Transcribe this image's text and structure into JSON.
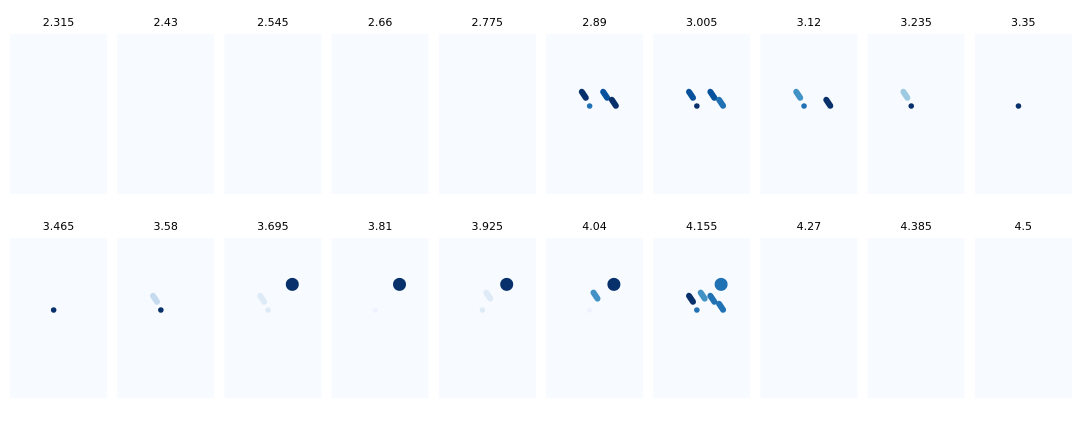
{
  "figure": {
    "background": "#ffffff",
    "panel_background": "#f7fbff",
    "colormap": "Blues"
  },
  "chart_data": {
    "type": "scatter",
    "description_axes": "axes hidden",
    "grid": false,
    "xlim": [
      0,
      1
    ],
    "ylim": [
      0,
      1
    ],
    "panels": [
      {
        "title": "2.315",
        "points": []
      },
      {
        "title": "2.43",
        "points": []
      },
      {
        "title": "2.545",
        "points": []
      },
      {
        "title": "2.66",
        "points": []
      },
      {
        "title": "2.775",
        "points": []
      },
      {
        "title": "2.89",
        "points": [
          {
            "x": 0.39,
            "y": 0.62,
            "shape": "dash",
            "color": "#08306b"
          },
          {
            "x": 0.61,
            "y": 0.62,
            "shape": "dash",
            "color": "#08519c"
          },
          {
            "x": 0.45,
            "y": 0.55,
            "shape": "dot",
            "color": "#2171b5"
          },
          {
            "x": 0.7,
            "y": 0.57,
            "shape": "dash",
            "color": "#08306b"
          }
        ]
      },
      {
        "title": "3.005",
        "points": [
          {
            "x": 0.39,
            "y": 0.62,
            "shape": "dash",
            "color": "#08519c"
          },
          {
            "x": 0.61,
            "y": 0.62,
            "shape": "dash",
            "color": "#08519c"
          },
          {
            "x": 0.45,
            "y": 0.55,
            "shape": "dot",
            "color": "#08306b"
          },
          {
            "x": 0.7,
            "y": 0.57,
            "shape": "dash",
            "color": "#2171b5"
          }
        ]
      },
      {
        "title": "3.12",
        "points": [
          {
            "x": 0.39,
            "y": 0.62,
            "shape": "dash",
            "color": "#4292c6"
          },
          {
            "x": 0.45,
            "y": 0.55,
            "shape": "dot",
            "color": "#2171b5"
          },
          {
            "x": 0.7,
            "y": 0.57,
            "shape": "dash",
            "color": "#08306b"
          }
        ]
      },
      {
        "title": "3.235",
        "points": [
          {
            "x": 0.39,
            "y": 0.62,
            "shape": "dash",
            "color": "#9ecae1"
          },
          {
            "x": 0.45,
            "y": 0.55,
            "shape": "dot",
            "color": "#08306b"
          }
        ]
      },
      {
        "title": "3.35",
        "points": [
          {
            "x": 0.45,
            "y": 0.55,
            "shape": "dot",
            "color": "#08306b"
          }
        ]
      },
      {
        "title": "3.465",
        "points": [
          {
            "x": 0.45,
            "y": 0.55,
            "shape": "dot",
            "color": "#08306b"
          }
        ]
      },
      {
        "title": "3.58",
        "points": [
          {
            "x": 0.39,
            "y": 0.62,
            "shape": "dash",
            "color": "#c6dbef"
          },
          {
            "x": 0.45,
            "y": 0.55,
            "shape": "dot",
            "color": "#08306b"
          }
        ]
      },
      {
        "title": "3.695",
        "points": [
          {
            "x": 0.7,
            "y": 0.71,
            "shape": "big",
            "color": "#08306b"
          },
          {
            "x": 0.39,
            "y": 0.62,
            "shape": "dash",
            "color": "#deebf7"
          },
          {
            "x": 0.45,
            "y": 0.55,
            "shape": "dot",
            "color": "#deebf7"
          }
        ]
      },
      {
        "title": "3.81",
        "points": [
          {
            "x": 0.7,
            "y": 0.71,
            "shape": "big",
            "color": "#08306b"
          },
          {
            "x": 0.45,
            "y": 0.55,
            "shape": "dot",
            "color": "#eff3ff"
          }
        ]
      },
      {
        "title": "3.925",
        "points": [
          {
            "x": 0.7,
            "y": 0.71,
            "shape": "big",
            "color": "#08306b"
          },
          {
            "x": 0.51,
            "y": 0.64,
            "shape": "dash",
            "color": "#deebf7"
          },
          {
            "x": 0.45,
            "y": 0.55,
            "shape": "dot",
            "color": "#deebf7"
          }
        ]
      },
      {
        "title": "4.04",
        "points": [
          {
            "x": 0.7,
            "y": 0.71,
            "shape": "big",
            "color": "#08306b"
          },
          {
            "x": 0.51,
            "y": 0.64,
            "shape": "dash",
            "color": "#4292c6"
          },
          {
            "x": 0.45,
            "y": 0.55,
            "shape": "dot",
            "color": "#eff3ff"
          }
        ]
      },
      {
        "title": "4.155",
        "points": [
          {
            "x": 0.7,
            "y": 0.71,
            "shape": "big",
            "color": "#2171b5"
          },
          {
            "x": 0.39,
            "y": 0.62,
            "shape": "dash",
            "color": "#08306b"
          },
          {
            "x": 0.51,
            "y": 0.64,
            "shape": "dash",
            "color": "#4292c6"
          },
          {
            "x": 0.61,
            "y": 0.62,
            "shape": "dash",
            "color": "#2171b5"
          },
          {
            "x": 0.45,
            "y": 0.55,
            "shape": "dot",
            "color": "#2171b5"
          },
          {
            "x": 0.7,
            "y": 0.57,
            "shape": "dash",
            "color": "#2171b5"
          }
        ]
      },
      {
        "title": "4.27",
        "points": []
      },
      {
        "title": "4.385",
        "points": []
      },
      {
        "title": "4.5",
        "points": []
      }
    ]
  }
}
